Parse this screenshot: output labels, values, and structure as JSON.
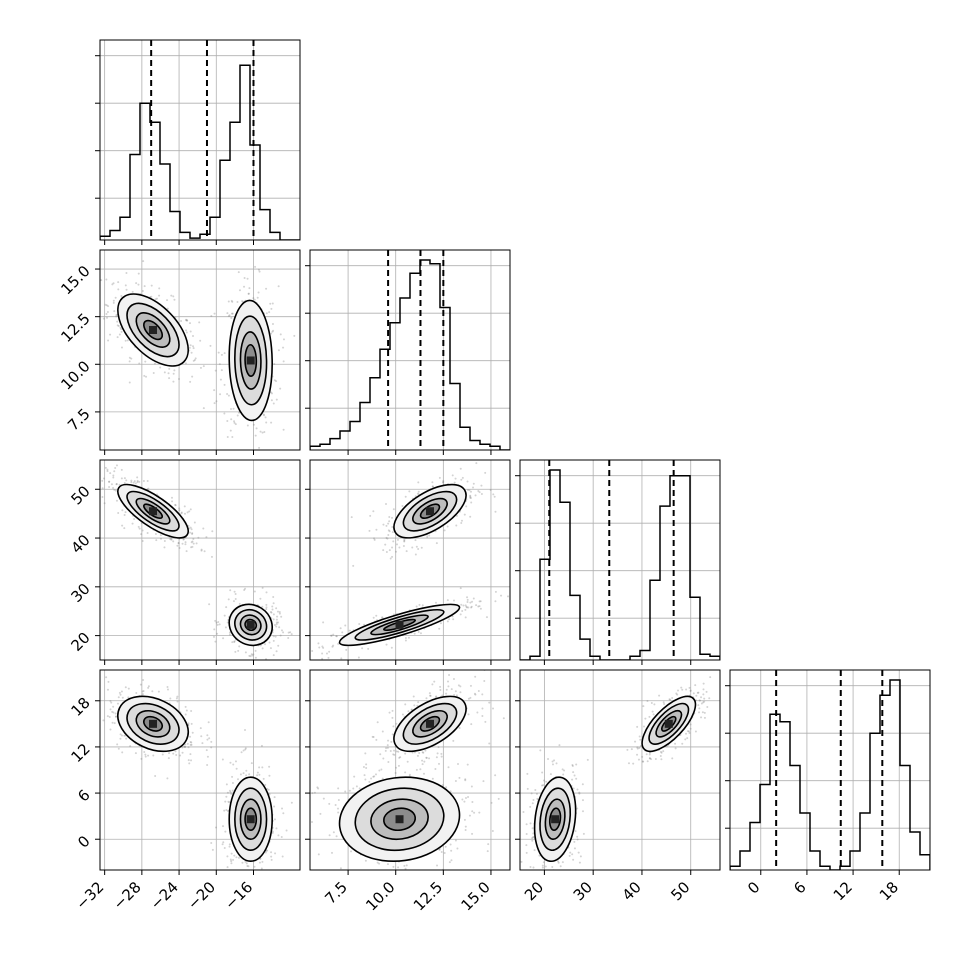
{
  "chart_data": {
    "type": "corner",
    "title": "",
    "ndim": 4,
    "grid": true,
    "colors": {
      "ink": "#000000",
      "grid": "#b0b0b0",
      "points": "#808080"
    },
    "axis_labels": [
      "",
      "",
      "",
      ""
    ],
    "ranges": [
      [
        -32.5,
        -11.0
      ],
      [
        5.5,
        16.0
      ],
      [
        15.0,
        56.0
      ],
      [
        -4.0,
        22.0
      ]
    ],
    "ticks": [
      [
        -32,
        -28,
        -24,
        -20,
        -16
      ],
      [
        7.5,
        10.0,
        12.5,
        15.0
      ],
      [
        20,
        30,
        40,
        50
      ],
      [
        0,
        6,
        12,
        18
      ]
    ],
    "tick_labels": [
      [
        "−32",
        "−28",
        "−24",
        "−20",
        "−16"
      ],
      [
        "7.5",
        "10.0",
        "12.5",
        "15.0"
      ],
      [
        "20",
        "30",
        "40",
        "50"
      ],
      [
        "0",
        "6",
        "12",
        "18"
      ]
    ],
    "quantiles": [
      [
        -27.0,
        -21.0,
        -16.0
      ],
      [
        9.6,
        11.3,
        12.5
      ],
      [
        21.0,
        33.3,
        46.5
      ],
      [
        2.0,
        10.4,
        15.8
      ]
    ],
    "histograms": [
      {
        "bins": 20,
        "counts": [
          0.02,
          0.05,
          0.12,
          0.45,
          0.72,
          0.62,
          0.4,
          0.15,
          0.04,
          0.01,
          0.03,
          0.12,
          0.42,
          0.62,
          0.92,
          0.5,
          0.16,
          0.04,
          0.0,
          0.0
        ]
      },
      {
        "bins": 20,
        "counts": [
          0.02,
          0.03,
          0.06,
          0.1,
          0.15,
          0.25,
          0.38,
          0.53,
          0.67,
          0.8,
          0.93,
          1.0,
          0.98,
          0.75,
          0.35,
          0.12,
          0.05,
          0.03,
          0.02,
          0.0
        ]
      },
      {
        "bins": 20,
        "counts": [
          0.0,
          0.02,
          0.53,
          1.0,
          0.83,
          0.34,
          0.11,
          0.02,
          0.0,
          0.0,
          0.0,
          0.02,
          0.05,
          0.42,
          0.81,
          0.97,
          0.97,
          0.33,
          0.03,
          0.02
        ]
      },
      {
        "bins": 20,
        "counts": [
          0.02,
          0.1,
          0.25,
          0.45,
          0.82,
          0.78,
          0.55,
          0.3,
          0.1,
          0.02,
          0.0,
          0.02,
          0.1,
          0.3,
          0.72,
          0.92,
          1.0,
          0.55,
          0.2,
          0.08
        ]
      }
    ],
    "modes": [
      {
        "x0": -26.8,
        "x1": 11.8,
        "x2": 45.5,
        "x3": 15.0,
        "s0": 1.8,
        "s1": 0.9,
        "s2": 2.6,
        "s3": 1.7,
        "corr": {
          "0-1": -0.55,
          "0-2": -0.75,
          "0-3": -0.3,
          "1-2": 0.6,
          "1-3": 0.55,
          "2-3": 0.7
        }
      },
      {
        "x0": -16.3,
        "x1": 10.2,
        "x2": 22.2,
        "x3": 2.6,
        "s0": 1.1,
        "s1": 1.5,
        "s2": 2.0,
        "s3": 2.6,
        "corr": {
          "0-1": -0.05,
          "0-2": -0.1,
          "0-3": 0.0,
          "1-2": 0.85,
          "1-3": 0.1,
          "2-3": 0.2
        }
      }
    ]
  }
}
